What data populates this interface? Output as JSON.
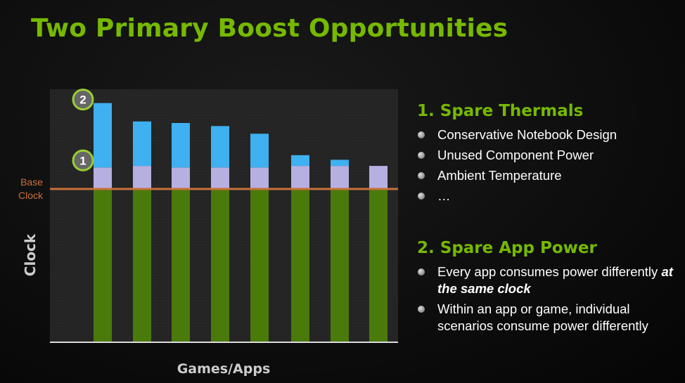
{
  "title": "Two Primary Boost Opportunities",
  "sections": [
    {
      "heading": "1. Spare Thermals",
      "bullets": [
        "Conservative Notebook Design",
        "Unused Component Power",
        "Ambient Temperature",
        "…"
      ]
    },
    {
      "heading": "2. Spare App Power",
      "bullets": [
        {
          "text": "Every app consumes power differently ",
          "emphasis": "at the same clock"
        },
        {
          "text": "Within an app or game, individual scenarios consume power differently"
        }
      ]
    }
  ],
  "chart_data": {
    "type": "bar",
    "stacked": true,
    "xlabel": "Games/Apps",
    "ylabel": "Clock",
    "reference_line": {
      "label": "Base Clock",
      "value": 1.0,
      "color": "#c8703a"
    },
    "markers": [
      {
        "label": "1",
        "segment": "thermal boost"
      },
      {
        "label": "2",
        "segment": "app power boost"
      }
    ],
    "ylim": [
      0,
      1.65
    ],
    "categories": [
      "",
      "",
      "",
      "",
      "",
      "",
      "",
      ""
    ],
    "series": [
      {
        "values": [
          1.0,
          1.0,
          1.0,
          1.0,
          1.0,
          1.0,
          1.0,
          1.0
        ],
        "color": "#4a7a0a"
      },
      {
        "values": [
          0.14,
          0.15,
          0.14,
          0.14,
          0.14,
          0.15,
          0.15,
          0.15
        ],
        "color": "#b6b0e0"
      },
      {
        "values": [
          0.42,
          0.29,
          0.29,
          0.27,
          0.22,
          0.07,
          0.04,
          0.0
        ],
        "color": "#3fb0f0"
      }
    ],
    "grid": false
  }
}
